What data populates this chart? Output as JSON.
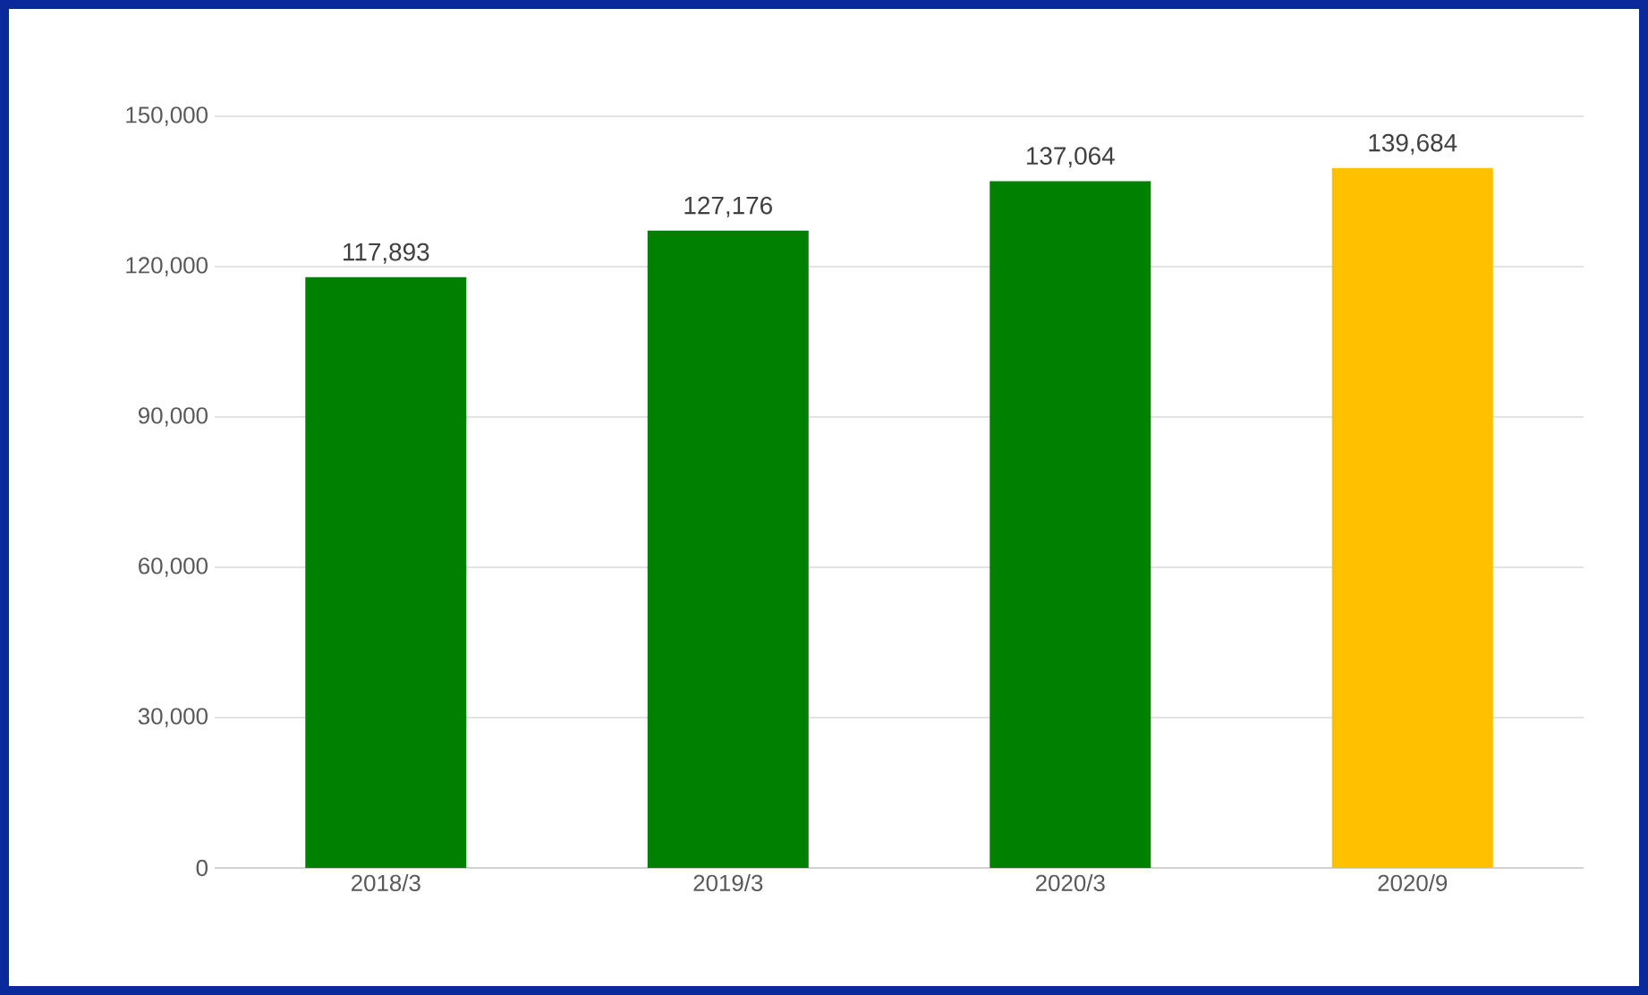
{
  "chart_data": {
    "type": "bar",
    "categories": [
      "2018/3",
      "2019/3",
      "2020/3",
      "2020/9"
    ],
    "values": [
      117893,
      127176,
      137064,
      139684
    ],
    "colors": [
      "#008000",
      "#008000",
      "#008000",
      "#ffc000"
    ],
    "value_labels": [
      "117,893",
      "127,176",
      "137,064",
      "139,684"
    ],
    "ylim": [
      0,
      150000
    ],
    "yticks": [
      {
        "value": 0,
        "label": "0"
      },
      {
        "value": 30000,
        "label": "30,000"
      },
      {
        "value": 60000,
        "label": "60,000"
      },
      {
        "value": 90000,
        "label": "90,000"
      },
      {
        "value": 120000,
        "label": "120,000"
      },
      {
        "value": 150000,
        "label": "150,000"
      }
    ],
    "grid": "y"
  }
}
